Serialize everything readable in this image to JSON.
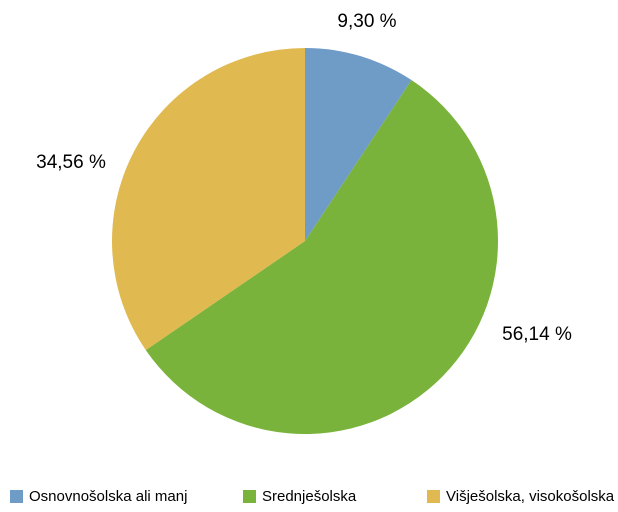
{
  "chart_data": {
    "type": "pie",
    "categories": [
      "Osnovnošolska ali manj",
      "Srednješolska",
      "Višješolska, visokošolska"
    ],
    "values": [
      9.3,
      56.14,
      34.56
    ],
    "value_labels": [
      "9,30 %",
      "56,14 %",
      "34,56 %"
    ],
    "colors": [
      "#6f9bc7",
      "#79b33c",
      "#e0b950"
    ],
    "legend": "bottom"
  }
}
